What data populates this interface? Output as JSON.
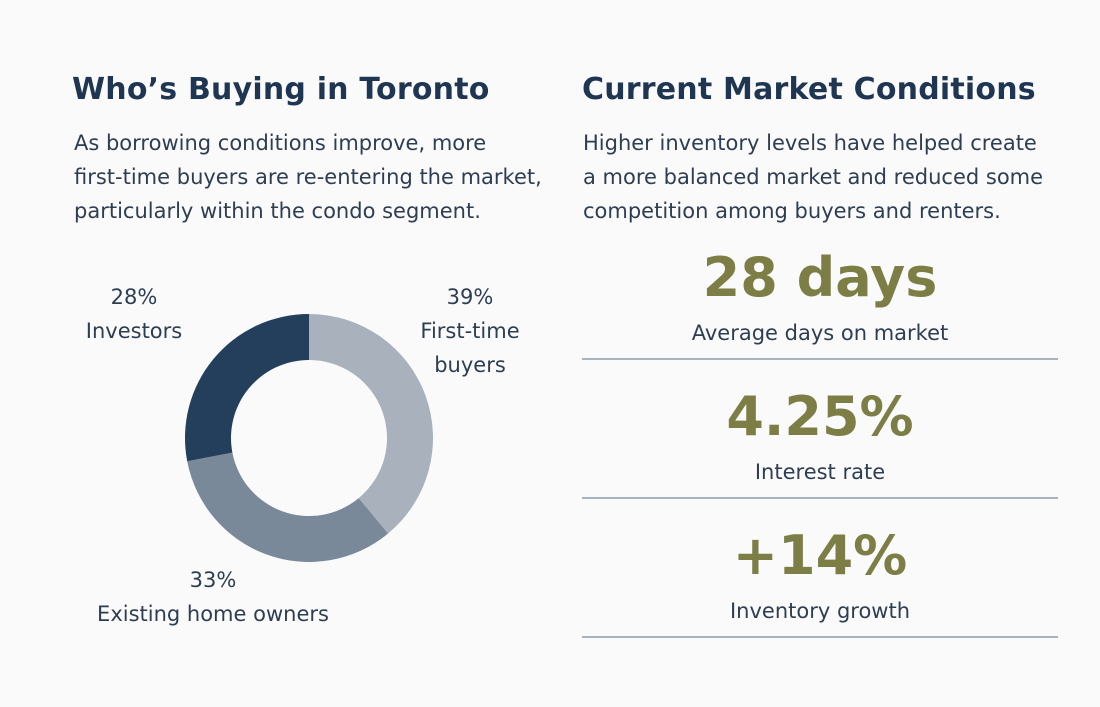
{
  "buyers": {
    "title": "Who’s Buying in Toronto",
    "description": "As borrowing conditions improve, more\nfirst-time buyers are re-entering the market,\nparticularly within the condo segment."
  },
  "chart_data": {
    "type": "donut",
    "categories": [
      "First-time\nbuyers",
      "Existing home owners",
      "Investors"
    ],
    "values": [
      39,
      33,
      28
    ],
    "value_labels": [
      "39%",
      "33%",
      "28%"
    ],
    "colors": [
      "#a8b1bc",
      "#7a899a",
      "#243f5b"
    ]
  },
  "market": {
    "title": "Current Market Conditions",
    "description": "Higher inventory levels have helped create\na more balanced market and reduced some\ncompetition among buyers and renters.",
    "stats": [
      {
        "value": "28 days",
        "label": "Average days on market"
      },
      {
        "value": "4.25%",
        "label": "Interest rate"
      },
      {
        "value": "+14%",
        "label": "Inventory growth"
      }
    ]
  }
}
